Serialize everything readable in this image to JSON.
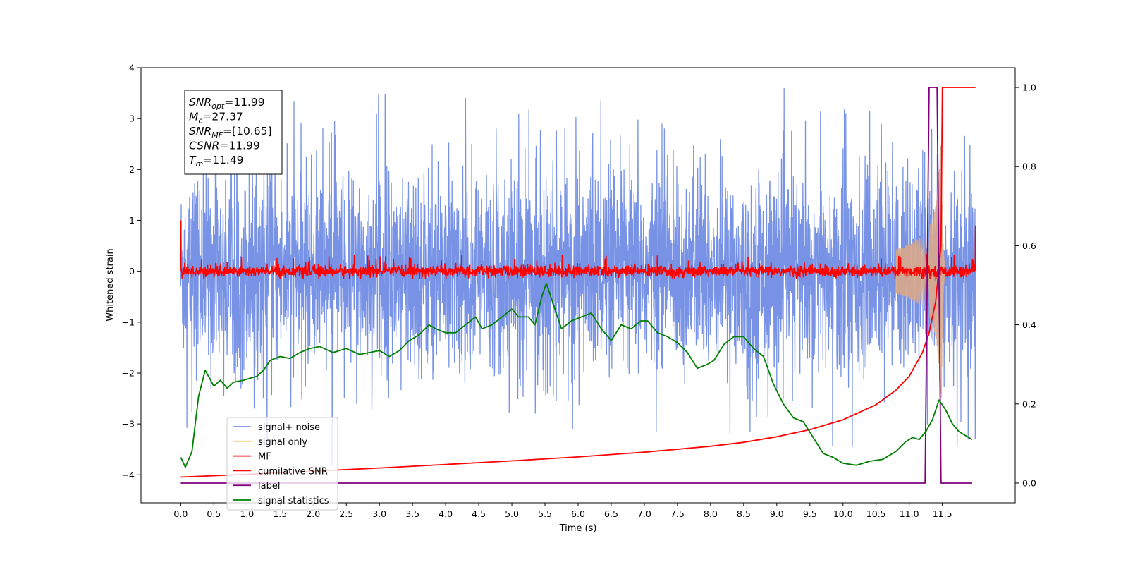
{
  "chart_data": {
    "type": "line",
    "title": "",
    "xlabel": "Time (s)",
    "ylabel": "Whitened strain",
    "xlim": [
      -0.6,
      12.6
    ],
    "ylim": [
      -4.55,
      4.0
    ],
    "y2lim": [
      -0.05,
      1.05
    ],
    "grid": false,
    "legend_position": "lower-left",
    "x_ticks": [
      0.0,
      0.5,
      1.0,
      1.5,
      2.0,
      2.5,
      3.0,
      3.5,
      4.0,
      4.5,
      5.0,
      5.5,
      6.0,
      6.5,
      7.0,
      7.5,
      8.0,
      8.5,
      9.0,
      9.5,
      10.0,
      10.5,
      11.0,
      11.5
    ],
    "x_tick_labels": [
      "0.0",
      "0.5",
      "1.0",
      "1.5",
      "2.0",
      "2.5",
      "3.0",
      "3.5",
      "4.0",
      "4.5",
      "5.0",
      "5.5",
      "6.0",
      "6.5",
      "7.0",
      "7.5",
      "8.0",
      "8.5",
      "9.0",
      "9.5",
      "10.0",
      "10.5",
      "11.0",
      "11.5"
    ],
    "y_ticks": [
      4,
      3,
      2,
      1,
      0,
      -1,
      -2,
      -3,
      -4
    ],
    "y_tick_labels": [
      "4",
      "3",
      "2",
      "1",
      "0",
      "−1",
      "−2",
      "−3",
      "−4"
    ],
    "y2_ticks": [
      1.0,
      0.8,
      0.6,
      0.4,
      0.2,
      0.0
    ],
    "y2_tick_labels": [
      "1.0",
      "0.8",
      "0.6",
      "0.4",
      "0.2",
      "0.0"
    ],
    "info_box": {
      "lines": [
        {
          "sym": "SNR",
          "sub": "opt",
          "val": "=11.99"
        },
        {
          "sym": "M",
          "sub": "c",
          "val": "=27.37"
        },
        {
          "sym": "SNR",
          "sub": "MF",
          "val": "=[10.65]"
        },
        {
          "sym": "CSNR",
          "sub": "",
          "val": "=11.99"
        },
        {
          "sym": "T",
          "sub": "m",
          "val": "=11.49"
        }
      ]
    },
    "series": [
      {
        "name": "signal+ noise",
        "color": "#7893e6",
        "axis": "left",
        "kind": "noise",
        "x_range": [
          0.0,
          12.0
        ],
        "y_min": -3.85,
        "y_max": 3.6,
        "std": 0.95
      },
      {
        "name": "signal only",
        "color": "#f5cf7a",
        "axis": "left",
        "kind": "chirp",
        "x_range": [
          10.8,
          11.55
        ],
        "peak_amplitude": 2.5,
        "merger_time": 11.49
      },
      {
        "name": "MF",
        "color": "#ff0000",
        "axis": "left",
        "kind": "noise",
        "x_range": [
          0.0,
          12.0
        ],
        "y_min": -0.15,
        "y_max": 0.35,
        "edge_values": [
          1.0,
          0.9
        ]
      },
      {
        "name": "cumilative SNR",
        "color": "#ff0000",
        "axis": "right",
        "x": [
          0.0,
          1.0,
          2.0,
          3.0,
          4.0,
          5.0,
          6.0,
          7.0,
          8.0,
          8.5,
          9.0,
          9.5,
          10.0,
          10.5,
          10.8,
          11.0,
          11.2,
          11.3,
          11.4,
          11.48,
          11.5,
          12.0
        ],
        "values": [
          0.015,
          0.022,
          0.03,
          0.038,
          0.047,
          0.056,
          0.066,
          0.078,
          0.093,
          0.103,
          0.117,
          0.135,
          0.16,
          0.198,
          0.235,
          0.27,
          0.33,
          0.38,
          0.46,
          0.6,
          1.0,
          1.0
        ]
      },
      {
        "name": "label",
        "color": "#800080",
        "axis": "right",
        "x": [
          0.0,
          11.24,
          11.3,
          11.42,
          11.48,
          11.95
        ],
        "values": [
          0.0,
          0.0,
          1.0,
          1.0,
          0.0,
          0.0
        ]
      },
      {
        "name": "signal statistics",
        "color": "#008000",
        "axis": "right",
        "x": [
          0.0,
          0.07,
          0.17,
          0.27,
          0.37,
          0.5,
          0.6,
          0.7,
          0.8,
          0.95,
          1.05,
          1.15,
          1.25,
          1.35,
          1.5,
          1.65,
          1.8,
          1.95,
          2.1,
          2.3,
          2.5,
          2.7,
          2.85,
          3.0,
          3.15,
          3.3,
          3.45,
          3.6,
          3.75,
          3.85,
          4.0,
          4.15,
          4.3,
          4.45,
          4.55,
          4.7,
          4.85,
          5.0,
          5.1,
          5.25,
          5.35,
          5.45,
          5.52,
          5.65,
          5.75,
          5.9,
          6.05,
          6.2,
          6.35,
          6.5,
          6.65,
          6.8,
          6.95,
          7.05,
          7.2,
          7.35,
          7.5,
          7.65,
          7.8,
          7.95,
          8.05,
          8.2,
          8.35,
          8.5,
          8.65,
          8.8,
          8.95,
          9.1,
          9.25,
          9.4,
          9.55,
          9.7,
          9.85,
          10.0,
          10.2,
          10.4,
          10.6,
          10.8,
          10.95,
          11.05,
          11.15,
          11.25,
          11.35,
          11.45,
          11.55,
          11.65,
          11.75,
          11.85,
          11.95
        ],
        "values": [
          0.065,
          0.04,
          0.08,
          0.22,
          0.285,
          0.245,
          0.26,
          0.24,
          0.255,
          0.26,
          0.265,
          0.27,
          0.285,
          0.31,
          0.32,
          0.315,
          0.33,
          0.34,
          0.345,
          0.33,
          0.34,
          0.325,
          0.33,
          0.335,
          0.32,
          0.335,
          0.36,
          0.375,
          0.4,
          0.39,
          0.38,
          0.38,
          0.4,
          0.42,
          0.39,
          0.4,
          0.42,
          0.44,
          0.42,
          0.42,
          0.4,
          0.47,
          0.505,
          0.44,
          0.39,
          0.41,
          0.42,
          0.43,
          0.39,
          0.36,
          0.4,
          0.39,
          0.41,
          0.41,
          0.38,
          0.37,
          0.355,
          0.33,
          0.29,
          0.3,
          0.31,
          0.35,
          0.37,
          0.37,
          0.34,
          0.32,
          0.25,
          0.2,
          0.165,
          0.155,
          0.115,
          0.075,
          0.065,
          0.05,
          0.045,
          0.055,
          0.06,
          0.08,
          0.105,
          0.115,
          0.11,
          0.13,
          0.16,
          0.21,
          0.185,
          0.15,
          0.13,
          0.12,
          0.11
        ]
      }
    ]
  }
}
